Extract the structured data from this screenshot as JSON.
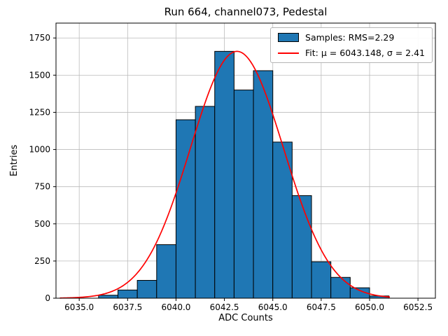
{
  "chart_data": {
    "type": "histogram",
    "title": "Run 664, channel073, Pedestal",
    "xlabel": "ADC Counts",
    "ylabel": "Entries",
    "xlim": [
      6033.8,
      6053.4
    ],
    "ylim": [
      0,
      1850
    ],
    "xticks": [
      6035.0,
      6037.5,
      6040.0,
      6042.5,
      6045.0,
      6047.5,
      6050.0,
      6052.5
    ],
    "xtick_labels": [
      "6035.0",
      "6037.5",
      "6040.0",
      "6042.5",
      "6045.0",
      "6047.5",
      "6050.0",
      "6052.5"
    ],
    "yticks": [
      0,
      250,
      500,
      750,
      1000,
      1250,
      1500,
      1750
    ],
    "ytick_labels": [
      "0",
      "250",
      "500",
      "750",
      "1000",
      "1250",
      "1500",
      "1750"
    ],
    "grid": true,
    "bin_start": 6036,
    "bin_width": 1,
    "counts": [
      20,
      55,
      120,
      360,
      1200,
      1290,
      1660,
      1400,
      1530,
      1050,
      690,
      245,
      140,
      70,
      15
    ],
    "fit": {
      "mu": 6043.148,
      "sigma": 2.41,
      "peak": 1660,
      "x_range": [
        6034.0,
        6051.1
      ]
    },
    "stats": {
      "rms": 2.29
    },
    "colors": {
      "bar_fill": "#1f77b4",
      "bar_edge": "#000000",
      "fit_line": "#ff0000",
      "grid_line": "#bbbbbb",
      "spine": "#000000"
    },
    "legend": [
      {
        "swatch": "patch",
        "label": "Samples: RMS=2.29"
      },
      {
        "swatch": "line",
        "label": "Fit: μ = 6043.148, σ = 2.41"
      }
    ]
  }
}
